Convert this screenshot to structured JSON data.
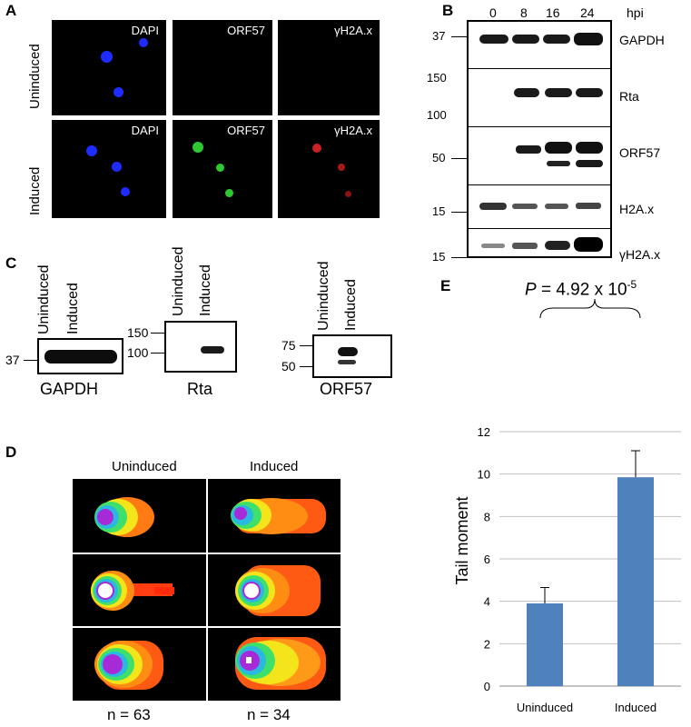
{
  "panelA": {
    "label": "A",
    "rows": [
      "Uninduced",
      "Induced"
    ],
    "channels": [
      "DAPI",
      "ORF57",
      "γH2A.x"
    ],
    "colors": {
      "dapi": "#1f2cff",
      "orf57": "#2ec832",
      "h2ax": "#c82222"
    }
  },
  "panelB": {
    "label": "B",
    "hpi_label": "hpi",
    "timepoints": [
      "0",
      "8",
      "16",
      "24"
    ],
    "blots": [
      {
        "name": "GAPDH",
        "mw": [
          "37"
        ]
      },
      {
        "name": "Rta",
        "mw": [
          "150",
          "100"
        ]
      },
      {
        "name": "ORF57",
        "mw": [
          "50"
        ]
      },
      {
        "name": "H2A.x",
        "mw": [
          "15"
        ]
      },
      {
        "name": "γH2A.x",
        "mw": [
          "15"
        ]
      }
    ]
  },
  "panelC": {
    "label": "C",
    "lanes": [
      "Uninduced",
      "Induced"
    ],
    "blots": [
      {
        "name": "GAPDH",
        "mw": [
          "37"
        ]
      },
      {
        "name": "Rta",
        "mw": [
          "150",
          "100"
        ]
      },
      {
        "name": "ORF57",
        "mw": [
          "75",
          "50"
        ]
      }
    ]
  },
  "panelD": {
    "label": "D",
    "columns": [
      "Uninduced",
      "Induced"
    ],
    "counts": [
      "n = 63",
      "n = 34"
    ]
  },
  "panelE": {
    "label": "E",
    "p_value_prefix": "P",
    "p_value_text": " = 4.92 x 10",
    "p_value_exp": "-5",
    "ylabel": "Tail moment",
    "bar_color": "#4f81bd",
    "chart_data": {
      "type": "bar",
      "categories": [
        "Uninduced",
        "Induced"
      ],
      "values": [
        3.9,
        9.85
      ],
      "errors": [
        0.75,
        1.25
      ],
      "ylim": [
        0,
        12
      ],
      "yticks": [
        0,
        2,
        4,
        6,
        8,
        10,
        12
      ],
      "ylabel": "Tail moment",
      "grid": true
    }
  }
}
